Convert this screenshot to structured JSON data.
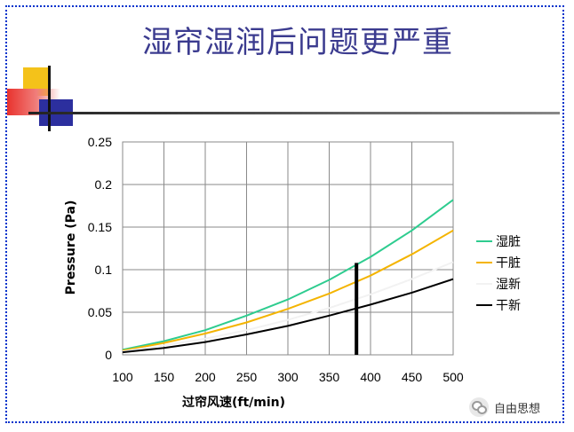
{
  "slide": {
    "title": "湿帘湿润后问题更严重"
  },
  "watermark": {
    "text": "自由思想",
    "icon": "wechat-icon"
  },
  "chart_data": {
    "type": "line",
    "title": "",
    "xlabel": "过帘风速(ft/min)",
    "ylabel": "Pressure (Pa)",
    "xlim": [
      100,
      500
    ],
    "ylim": [
      0,
      0.25
    ],
    "xticks": [
      100,
      150,
      200,
      250,
      300,
      350,
      400,
      450,
      500
    ],
    "yticks": [
      0,
      0.05,
      0.1,
      0.15,
      0.2,
      0.25
    ],
    "xtick_labels": [
      "100",
      "150",
      "200",
      "250",
      "300",
      "350",
      "400",
      "450",
      "500"
    ],
    "ytick_labels": [
      "0",
      "0.05",
      "0.1",
      "0.15",
      "0.2",
      "0.25"
    ],
    "grid": true,
    "legend_position": "right",
    "x": [
      100,
      150,
      200,
      250,
      300,
      350,
      400,
      450,
      500
    ],
    "series": [
      {
        "name": "湿脏",
        "color": "#2ecc8f",
        "values": [
          0.006,
          0.016,
          0.029,
          0.046,
          0.065,
          0.088,
          0.115,
          0.146,
          0.182
        ]
      },
      {
        "name": "干脏",
        "color": "#f4b400",
        "values": [
          0.005,
          0.014,
          0.025,
          0.038,
          0.054,
          0.072,
          0.093,
          0.118,
          0.146
        ]
      },
      {
        "name": "湿新",
        "color": "#f2f2f2",
        "values": [
          0.004,
          0.011,
          0.019,
          0.029,
          0.041,
          0.055,
          0.071,
          0.089,
          0.109
        ]
      },
      {
        "name": "干新",
        "color": "#000000",
        "values": [
          0.003,
          0.008,
          0.015,
          0.024,
          0.034,
          0.046,
          0.059,
          0.073,
          0.089
        ]
      }
    ],
    "marker_line": {
      "x": 383,
      "y_from": 0,
      "y_to": 0.108,
      "color": "#000000"
    }
  }
}
